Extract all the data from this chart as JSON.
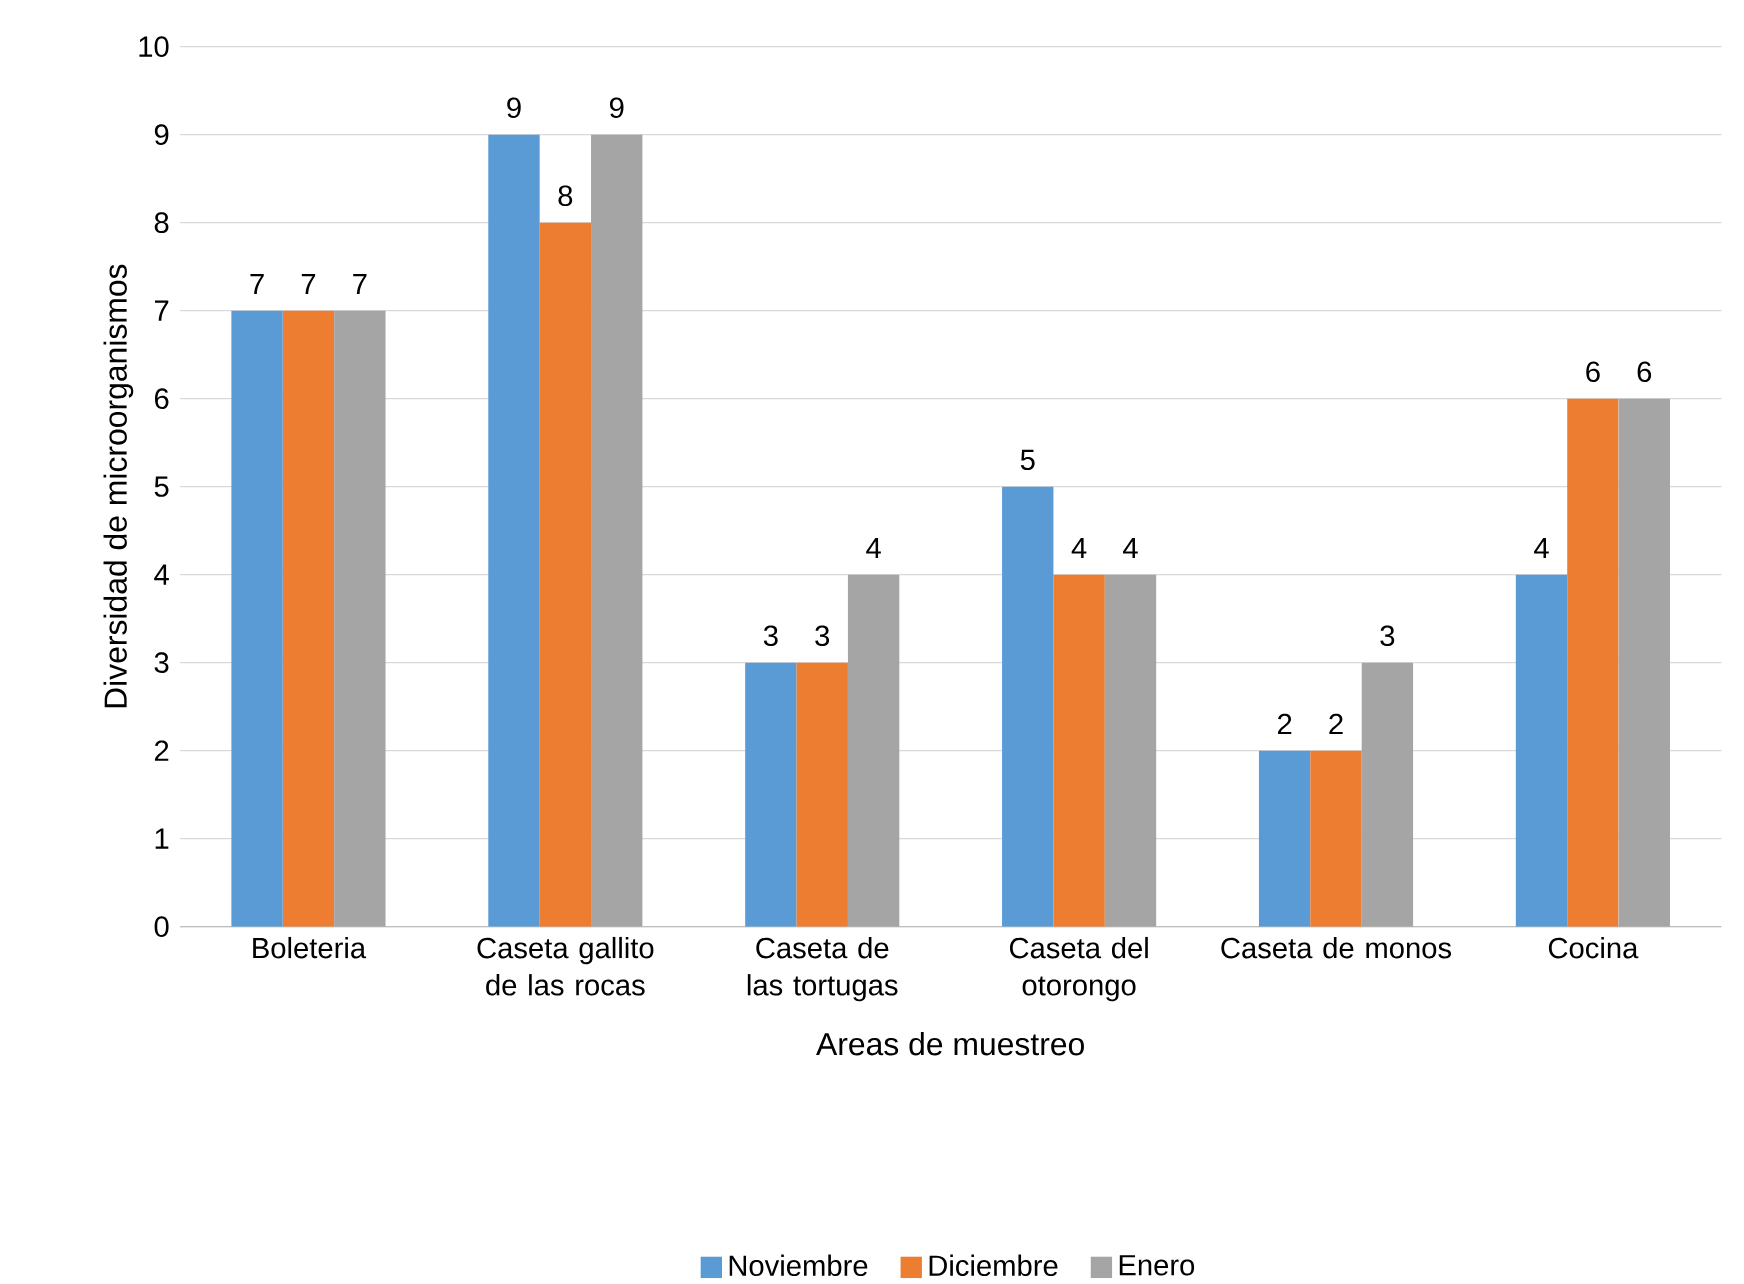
{
  "chart_data": {
    "type": "bar",
    "xlabel": "Areas de muestreo",
    "ylabel": "Diversidad de microorganismos",
    "categories": [
      "Boleteria",
      "Caseta gallito de las rocas",
      "Caseta de las tortugas",
      "Caseta del otorongo",
      "Caseta de monos",
      "Cocina"
    ],
    "series": [
      {
        "name": "Noviembre",
        "color": "#5b9bd5",
        "values": [
          7,
          9,
          3,
          5,
          2,
          4
        ]
      },
      {
        "name": "Diciembre",
        "color": "#ed7d31",
        "values": [
          7,
          8,
          3,
          4,
          2,
          6
        ]
      },
      {
        "name": "Enero",
        "color": "#a5a5a5",
        "values": [
          7,
          9,
          4,
          4,
          3,
          6
        ]
      }
    ],
    "ylim": [
      0,
      10
    ],
    "yticks": [
      0,
      1,
      2,
      3,
      4,
      5,
      6,
      7,
      8,
      9,
      10
    ],
    "grid": "y",
    "legend": "bottom",
    "data_labels": true
  }
}
